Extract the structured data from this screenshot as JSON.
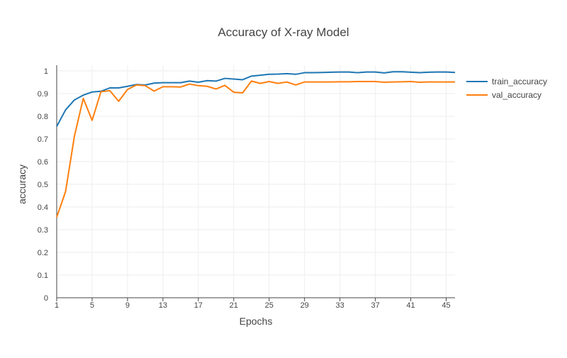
{
  "chart_data": {
    "type": "line",
    "title": "Accuracy of X-ray Model",
    "xlabel": "Epochs",
    "ylabel": "accuracy",
    "xlim": [
      1,
      46
    ],
    "ylim": [
      0,
      1
    ],
    "x_ticks": [
      1,
      5,
      9,
      13,
      17,
      21,
      25,
      29,
      33,
      37,
      41,
      45
    ],
    "y_ticks": [
      0,
      0.1,
      0.2,
      0.3,
      0.4,
      0.5,
      0.6,
      0.7,
      0.8,
      0.9,
      1
    ],
    "y_tick_labels": [
      "0",
      "0.1",
      "0.2",
      "0.3",
      "0.4",
      "0.5",
      "0.6",
      "0.7",
      "0.8",
      "0.9",
      "1"
    ],
    "x_tick_labels": [
      "1",
      "5",
      "9",
      "13",
      "17",
      "21",
      "25",
      "29",
      "33",
      "37",
      "41",
      "45"
    ],
    "grid": true,
    "legend_position": "top-right",
    "x": [
      1,
      2,
      3,
      4,
      5,
      6,
      7,
      8,
      9,
      10,
      11,
      12,
      13,
      14,
      15,
      16,
      17,
      18,
      19,
      20,
      21,
      22,
      23,
      24,
      25,
      26,
      27,
      28,
      29,
      30,
      31,
      32,
      33,
      34,
      35,
      36,
      37,
      38,
      39,
      40,
      41,
      42,
      43,
      44,
      45,
      46
    ],
    "series": [
      {
        "name": "train_accuracy",
        "color": "#1f77b4",
        "values": [
          0.755,
          0.828,
          0.872,
          0.893,
          0.907,
          0.91,
          0.925,
          0.925,
          0.932,
          0.94,
          0.938,
          0.946,
          0.948,
          0.948,
          0.948,
          0.955,
          0.95,
          0.957,
          0.955,
          0.967,
          0.964,
          0.961,
          0.977,
          0.981,
          0.985,
          0.986,
          0.988,
          0.985,
          0.992,
          0.992,
          0.993,
          0.994,
          0.995,
          0.995,
          0.992,
          0.995,
          0.995,
          0.991,
          0.996,
          0.996,
          0.994,
          0.992,
          0.994,
          0.995,
          0.995,
          0.993
        ]
      },
      {
        "name": "val_accuracy",
        "color": "#ff7f0e",
        "values": [
          0.355,
          0.468,
          0.712,
          0.879,
          0.782,
          0.908,
          0.913,
          0.866,
          0.918,
          0.938,
          0.935,
          0.911,
          0.93,
          0.93,
          0.929,
          0.942,
          0.935,
          0.932,
          0.92,
          0.936,
          0.906,
          0.903,
          0.955,
          0.945,
          0.953,
          0.945,
          0.951,
          0.938,
          0.951,
          0.951,
          0.951,
          0.951,
          0.952,
          0.952,
          0.953,
          0.953,
          0.953,
          0.95,
          0.951,
          0.952,
          0.953,
          0.95,
          0.951,
          0.951,
          0.951,
          0.951
        ]
      }
    ]
  }
}
